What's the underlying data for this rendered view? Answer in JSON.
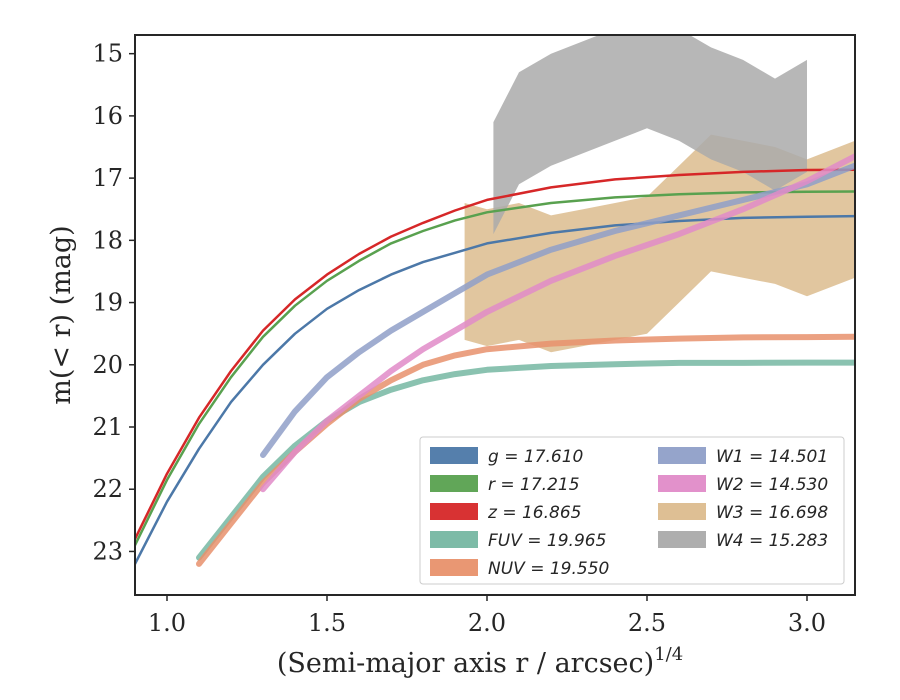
{
  "chart_data": {
    "type": "line",
    "xlabel": "(Semi-major axis r / arcsec)",
    "xlabel_sup": "1/4",
    "ylabel": "m(< r) (mag)",
    "xlim": [
      0.9,
      3.15
    ],
    "ylim": [
      23.7,
      14.7
    ],
    "y_inverted": true,
    "grid": false,
    "legend_position": "lower-right",
    "x_ticks": [
      "1.0",
      "1.5",
      "2.0",
      "2.5",
      "3.0"
    ],
    "x_tick_values": [
      1.0,
      1.5,
      2.0,
      2.5,
      3.0
    ],
    "y_ticks": [
      "15",
      "16",
      "17",
      "18",
      "19",
      "20",
      "21",
      "22",
      "23"
    ],
    "y_tick_values": [
      15,
      16,
      17,
      18,
      19,
      20,
      21,
      22,
      23
    ],
    "legend": [
      {
        "label": "g = 17.610",
        "color": "#4c78a8"
      },
      {
        "label": "r = 17.215",
        "color": "#59a14f"
      },
      {
        "label": "z = 16.865",
        "color": "#d62728"
      },
      {
        "label": "FUV = 19.965",
        "color": "#76b7a2"
      },
      {
        "label": "NUV = 19.550",
        "color": "#e8916c"
      },
      {
        "label": "W1 = 14.501",
        "color": "#8f9fc8"
      },
      {
        "label": "W2 = 14.530",
        "color": "#e08bc8"
      },
      {
        "label": "W3 = 16.698",
        "color": "#dcbc8e"
      },
      {
        "label": "W4 = 15.283",
        "color": "#aaaaaa"
      }
    ],
    "series": [
      {
        "name": "g",
        "color": "#4c78a8",
        "x": [
          0.9,
          1.0,
          1.1,
          1.2,
          1.3,
          1.4,
          1.5,
          1.6,
          1.7,
          1.8,
          1.9,
          2.0,
          2.2,
          2.4,
          2.6,
          2.8,
          3.0,
          3.15
        ],
        "y": [
          23.2,
          22.2,
          21.35,
          20.6,
          20.0,
          19.5,
          19.1,
          18.8,
          18.55,
          18.35,
          18.2,
          18.05,
          17.88,
          17.76,
          17.69,
          17.64,
          17.62,
          17.61
        ]
      },
      {
        "name": "r",
        "color": "#59a14f",
        "x": [
          0.9,
          1.0,
          1.1,
          1.2,
          1.3,
          1.4,
          1.5,
          1.6,
          1.7,
          1.8,
          1.9,
          2.0,
          2.2,
          2.4,
          2.6,
          2.8,
          3.0,
          3.15
        ],
        "y": [
          22.9,
          21.85,
          20.95,
          20.2,
          19.55,
          19.05,
          18.65,
          18.33,
          18.05,
          17.85,
          17.68,
          17.55,
          17.4,
          17.31,
          17.26,
          17.23,
          17.22,
          17.215
        ]
      },
      {
        "name": "z",
        "color": "#d62728",
        "x": [
          0.9,
          1.0,
          1.1,
          1.2,
          1.3,
          1.4,
          1.5,
          1.6,
          1.7,
          1.8,
          1.9,
          2.0,
          2.2,
          2.4,
          2.6,
          2.8,
          3.0,
          3.15
        ],
        "y": [
          22.8,
          21.75,
          20.85,
          20.1,
          19.45,
          18.95,
          18.55,
          18.22,
          17.94,
          17.72,
          17.52,
          17.35,
          17.15,
          17.02,
          16.95,
          16.9,
          16.87,
          16.865
        ]
      },
      {
        "name": "FUV",
        "color": "#76b7a2",
        "x": [
          1.1,
          1.2,
          1.3,
          1.4,
          1.5,
          1.6,
          1.7,
          1.8,
          1.9,
          2.0,
          2.2,
          2.4,
          2.6,
          2.8,
          3.0,
          3.15
        ],
        "y": [
          23.1,
          22.45,
          21.8,
          21.3,
          20.9,
          20.6,
          20.4,
          20.25,
          20.15,
          20.08,
          20.02,
          19.99,
          19.97,
          19.97,
          19.965,
          19.965
        ]
      },
      {
        "name": "NUV",
        "color": "#e8916c",
        "x": [
          1.1,
          1.2,
          1.3,
          1.4,
          1.5,
          1.6,
          1.7,
          1.8,
          1.9,
          2.0,
          2.2,
          2.4,
          2.6,
          2.8,
          3.0,
          3.15
        ],
        "y": [
          23.2,
          22.55,
          21.9,
          21.4,
          20.95,
          20.55,
          20.25,
          20.0,
          19.85,
          19.75,
          19.66,
          19.61,
          19.58,
          19.56,
          19.555,
          19.55
        ]
      },
      {
        "name": "W1",
        "color": "#8f9fc8",
        "x": [
          1.3,
          1.4,
          1.5,
          1.6,
          1.7,
          1.8,
          1.9,
          2.0,
          2.2,
          2.4,
          2.6,
          2.8,
          3.0,
          3.15
        ],
        "y": [
          21.45,
          20.75,
          20.2,
          19.8,
          19.45,
          19.15,
          18.85,
          18.55,
          18.15,
          17.85,
          17.6,
          17.35,
          17.1,
          16.8
        ]
      },
      {
        "name": "W2",
        "color": "#e08bc8",
        "x": [
          1.3,
          1.4,
          1.5,
          1.6,
          1.7,
          1.8,
          1.9,
          2.0,
          2.2,
          2.4,
          2.6,
          2.8,
          3.0,
          3.15
        ],
        "y": [
          22.0,
          21.4,
          20.9,
          20.5,
          20.1,
          19.75,
          19.45,
          19.15,
          18.65,
          18.25,
          17.9,
          17.5,
          17.05,
          16.65
        ]
      },
      {
        "name": "W3",
        "color": "#dcbc8e",
        "x": [
          1.93,
          2.0,
          2.1,
          2.2,
          2.3,
          2.4,
          2.5,
          2.6,
          2.7,
          2.8,
          2.9,
          3.0,
          3.15
        ],
        "y": [
          18.5,
          18.6,
          18.5,
          18.7,
          18.6,
          18.5,
          18.4,
          17.9,
          17.4,
          17.5,
          17.6,
          17.8,
          17.5
        ]
      },
      {
        "name": "W4",
        "color": "#aaaaaa",
        "x": [
          2.02,
          2.1,
          2.2,
          2.3,
          2.4,
          2.5,
          2.6,
          2.7,
          2.8,
          2.9,
          3.0
        ],
        "y": [
          17.0,
          16.2,
          15.9,
          15.7,
          15.5,
          15.3,
          15.5,
          15.8,
          16.0,
          16.3,
          16.0
        ]
      }
    ]
  }
}
